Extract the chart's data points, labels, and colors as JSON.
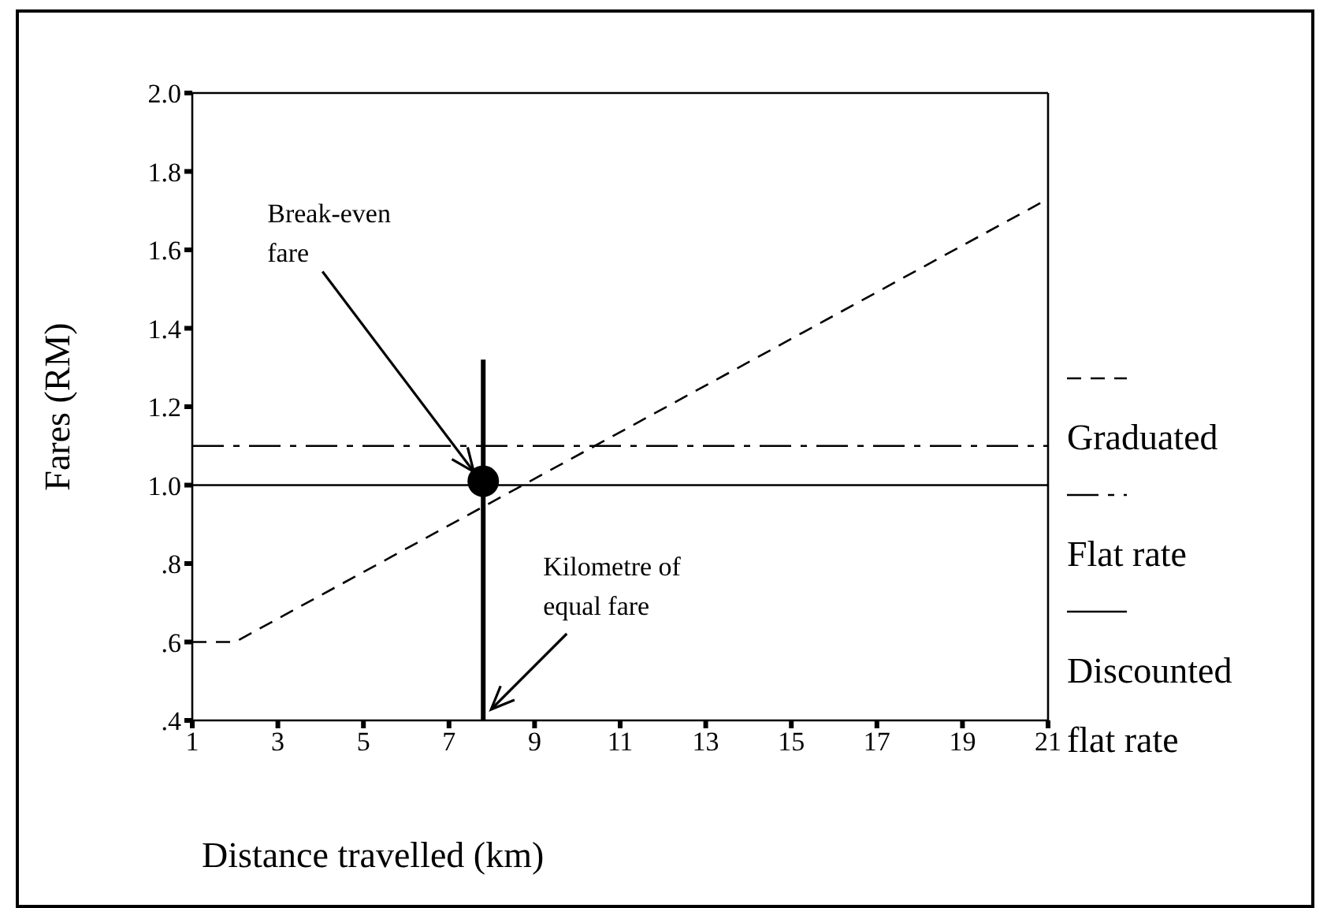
{
  "chart_data": {
    "type": "line",
    "xlabel": "Distance travelled (km)",
    "ylabel": "Fares (RM)",
    "xlim": [
      1,
      21
    ],
    "xticks": [
      1,
      3,
      5,
      7,
      9,
      11,
      13,
      15,
      17,
      19,
      21
    ],
    "ylim": [
      0.4,
      2.0
    ],
    "yticks": [
      {
        "value": 0.4,
        "label": ".4"
      },
      {
        "value": 0.6,
        "label": ".6"
      },
      {
        "value": 0.8,
        "label": ".8"
      },
      "1.0",
      1.2,
      1.4,
      1.6,
      1.8,
      "2.0"
    ],
    "legend": "right",
    "marker": "none",
    "series": [
      {
        "name": "Graduated",
        "color": "#000000",
        "line_style": "dashed",
        "x": [
          1,
          2,
          21
        ],
        "values": [
          0.6,
          0.6,
          1.73
        ]
      },
      {
        "name": "Flat rate",
        "color": "#000000",
        "line_style": "dashdot",
        "x": [
          1,
          21
        ],
        "values": [
          1.1,
          1.1
        ]
      },
      {
        "name": "Discounted flat rate",
        "color": "#000000",
        "line_style": "solid",
        "x": [
          1,
          21
        ],
        "values": [
          1.0,
          1.0
        ]
      },
      {
        "type": "line",
        "color": "#000000",
        "line_style": "solid",
        "x": [
          7.8,
          7.8
        ],
        "values": [
          0.4,
          1.32
        ]
      },
      {
        "type": "scatter",
        "color": "#000000",
        "marker": "circle",
        "x": [
          7.8
        ],
        "values": [
          1.01
        ]
      }
    ],
    "annotations": [
      {
        "text": "Break-even fare",
        "x": 7.8,
        "y": 1.01
      },
      {
        "text": "Kilometre of equal fare",
        "x": 7.8,
        "y": 0.4
      }
    ]
  }
}
